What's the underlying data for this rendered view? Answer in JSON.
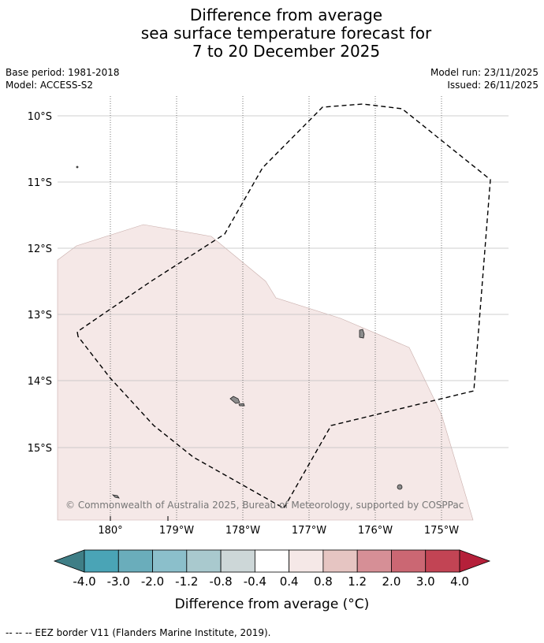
{
  "title": {
    "line1": "Difference from average",
    "line2": "sea surface temperature forecast for",
    "line3": "7 to 20 December 2025"
  },
  "meta_left": {
    "base_period": "Base period: 1981-2018",
    "model": "Model: ACCESS-S2"
  },
  "meta_right": {
    "model_run": "Model run: 23/11/2025",
    "issued": "Issued: 26/11/2025"
  },
  "map": {
    "lat_labels": [
      "10°S",
      "11°S",
      "12°S",
      "13°S",
      "14°S",
      "15°S"
    ],
    "lon_labels": [
      "180°",
      "179°W",
      "178°W",
      "177°W",
      "176°W",
      "175°W"
    ],
    "land_color": "#8c8c8c",
    "anomaly_fill_color": "#f5e8e7",
    "eez_line_style": "dashed",
    "copyright": "© Commonwealth of Australia 2025, Bureau of Meteorology, supported by COSPPac"
  },
  "legend": {
    "tick_labels": [
      "-4.0",
      "-3.0",
      "-2.0",
      "-1.2",
      "-0.8",
      "-0.4",
      "0.4",
      "0.8",
      "1.2",
      "2.0",
      "3.0",
      "4.0"
    ],
    "colors": [
      "#3f7e86",
      "#4aa4b6",
      "#6aadbb",
      "#8bbfcb",
      "#a9c9ce",
      "#cdd7d8",
      "#ffffff",
      "#f5e8e7",
      "#e6c5c2",
      "#d68f96",
      "#cb6773",
      "#c24454",
      "#b5203a"
    ],
    "label": "Difference from average (°C)"
  },
  "footer": "--  --  -- EEZ border V11 (Flanders Marine Institute, 2019)."
}
